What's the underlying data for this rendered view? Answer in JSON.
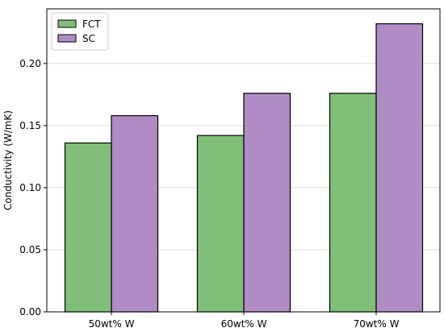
{
  "chart_data": {
    "type": "bar",
    "title": "",
    "xlabel": "",
    "ylabel": "Conductivity (W/mK)",
    "categories": [
      "50wt% W",
      "60wt% W",
      "70wt% W"
    ],
    "series": [
      {
        "name": "FCT",
        "values": [
          0.136,
          0.142,
          0.176
        ],
        "color": "#80bf7a"
      },
      {
        "name": "SC",
        "values": [
          0.158,
          0.176,
          0.232
        ],
        "color": "#b08cc4"
      }
    ],
    "ylim": [
      0,
      0.244
    ],
    "yticks": [
      0.0,
      0.05,
      0.1,
      0.15,
      0.2
    ],
    "ytick_labels": [
      "0.00",
      "0.05",
      "0.10",
      "0.15",
      "0.20"
    ],
    "grid": "horizontal",
    "legend": "top-left"
  }
}
